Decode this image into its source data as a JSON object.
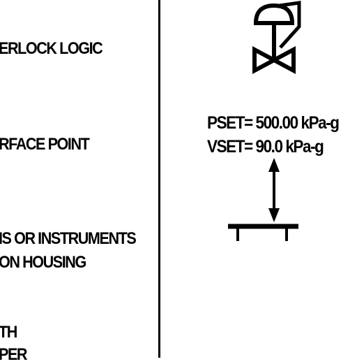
{
  "legend": {
    "row1": "ERLOCK LOGIC",
    "row2": "RFACE POINT",
    "row3a": "IS OR INSTRUMENTS",
    "row3b": "ON HOUSING",
    "row4a": "TH",
    "row4b": "PER"
  },
  "valve": {
    "pset": "PSET= 500.00 kPa-g",
    "vset": "VSET= 90.0 kPa-g"
  }
}
